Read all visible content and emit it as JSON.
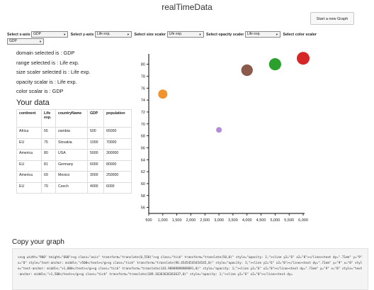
{
  "app": {
    "title": "realTimeData",
    "new_graph_label": "Start a new Graph"
  },
  "selectors": [
    {
      "label": "Select x-axis",
      "value": "GDP"
    },
    {
      "label": "Select y-axis",
      "value": "Life exp."
    },
    {
      "label": "Select size scaler",
      "value": "Life exp."
    },
    {
      "label": "Select opacity scaler",
      "value": "Life exp."
    },
    {
      "label": "Select color scaler",
      "value": "GDP"
    }
  ],
  "status": {
    "domain": "domain selected is : GDP",
    "range": "range selected is : Life exp.",
    "size": "size scaler selected is : Life exp.",
    "opacity": "opacity scalar is : Life exp.",
    "color": "color scalar is : GDP"
  },
  "your_data": {
    "title": "Your data",
    "headers": [
      "continent",
      "Life exp.",
      "countryName",
      "GDP",
      "population"
    ],
    "rows": [
      [
        "Africa",
        "55",
        "zambia",
        "500",
        "65000"
      ],
      [
        "EU",
        "75",
        "Slovakia",
        "1000",
        "70000"
      ],
      [
        "America",
        "80",
        "USA",
        "5000",
        "300000"
      ],
      [
        "EU",
        "81",
        "Germany",
        "6000",
        "80000"
      ],
      [
        "America",
        "69",
        "Mexico",
        "3000",
        "250000"
      ],
      [
        "EU",
        "79",
        "Czech",
        "4000",
        "6000"
      ]
    ]
  },
  "chart_data": {
    "type": "scatter",
    "x_ticks": [
      "500",
      "1,000",
      "1,500",
      "2,000",
      "2,500",
      "3,000",
      "3,500",
      "4,000",
      "4,500",
      "5,000",
      "5,500",
      "6,000"
    ],
    "y_ticks": [
      "56",
      "58",
      "60",
      "62",
      "64",
      "66",
      "68",
      "70",
      "72",
      "74",
      "76",
      "78",
      "80"
    ],
    "xlim": [
      500,
      6000
    ],
    "ylim": [
      55,
      81.5
    ],
    "points": [
      {
        "x": 1000,
        "y": 75,
        "color": "#f0932c"
      },
      {
        "x": 3000,
        "y": 69,
        "color": "#b38bd6"
      },
      {
        "x": 4000,
        "y": 79,
        "color": "#8b5a4a"
      },
      {
        "x": 5000,
        "y": 80,
        "color": "#2ca02c"
      },
      {
        "x": 6000,
        "y": 81,
        "color": "#d62728"
      }
    ]
  },
  "copy": {
    "title": "Copy your graph",
    "code": "<svg width=\"900\" height=\"600\"><g class=\"axis\" transform=\"translate(0,550)\"><g class=\"tick\" transform=\"translate(50,0)\" style=\"opacity: 1;\"><line y2=\"6\" x2=\"0\"></line><text dy=\".71em\" y=\"9\" x=\"0\" style=\"text-anchor: middle;\">500</text></g><g class=\"tick\" transform=\"translate(96.45454545454545,0)\" style=\"opacity: 1;\"><line y2=\"6\" x2=\"0\"></line><text dy=\".71em\" y=\"9\" x=\"0\" style=\"text-anchor: middle;\">1,000</text></g><g class=\"tick\" transform=\"translate(143.90909090909091,0)\" style=\"opacity: 1;\"><line y2=\"6\" x2=\"0\"></line><text dy=\".71em\" y=\"9\" x=\"0\" style=\"text-anchor: middle;\">1,500</text></g><g class=\"tick\" transform=\"translate(189.36363636363637,0)\" style=\"opacity: 1;\"><line y2=\"6\" x2=\"0\"></line><text dy="
  }
}
